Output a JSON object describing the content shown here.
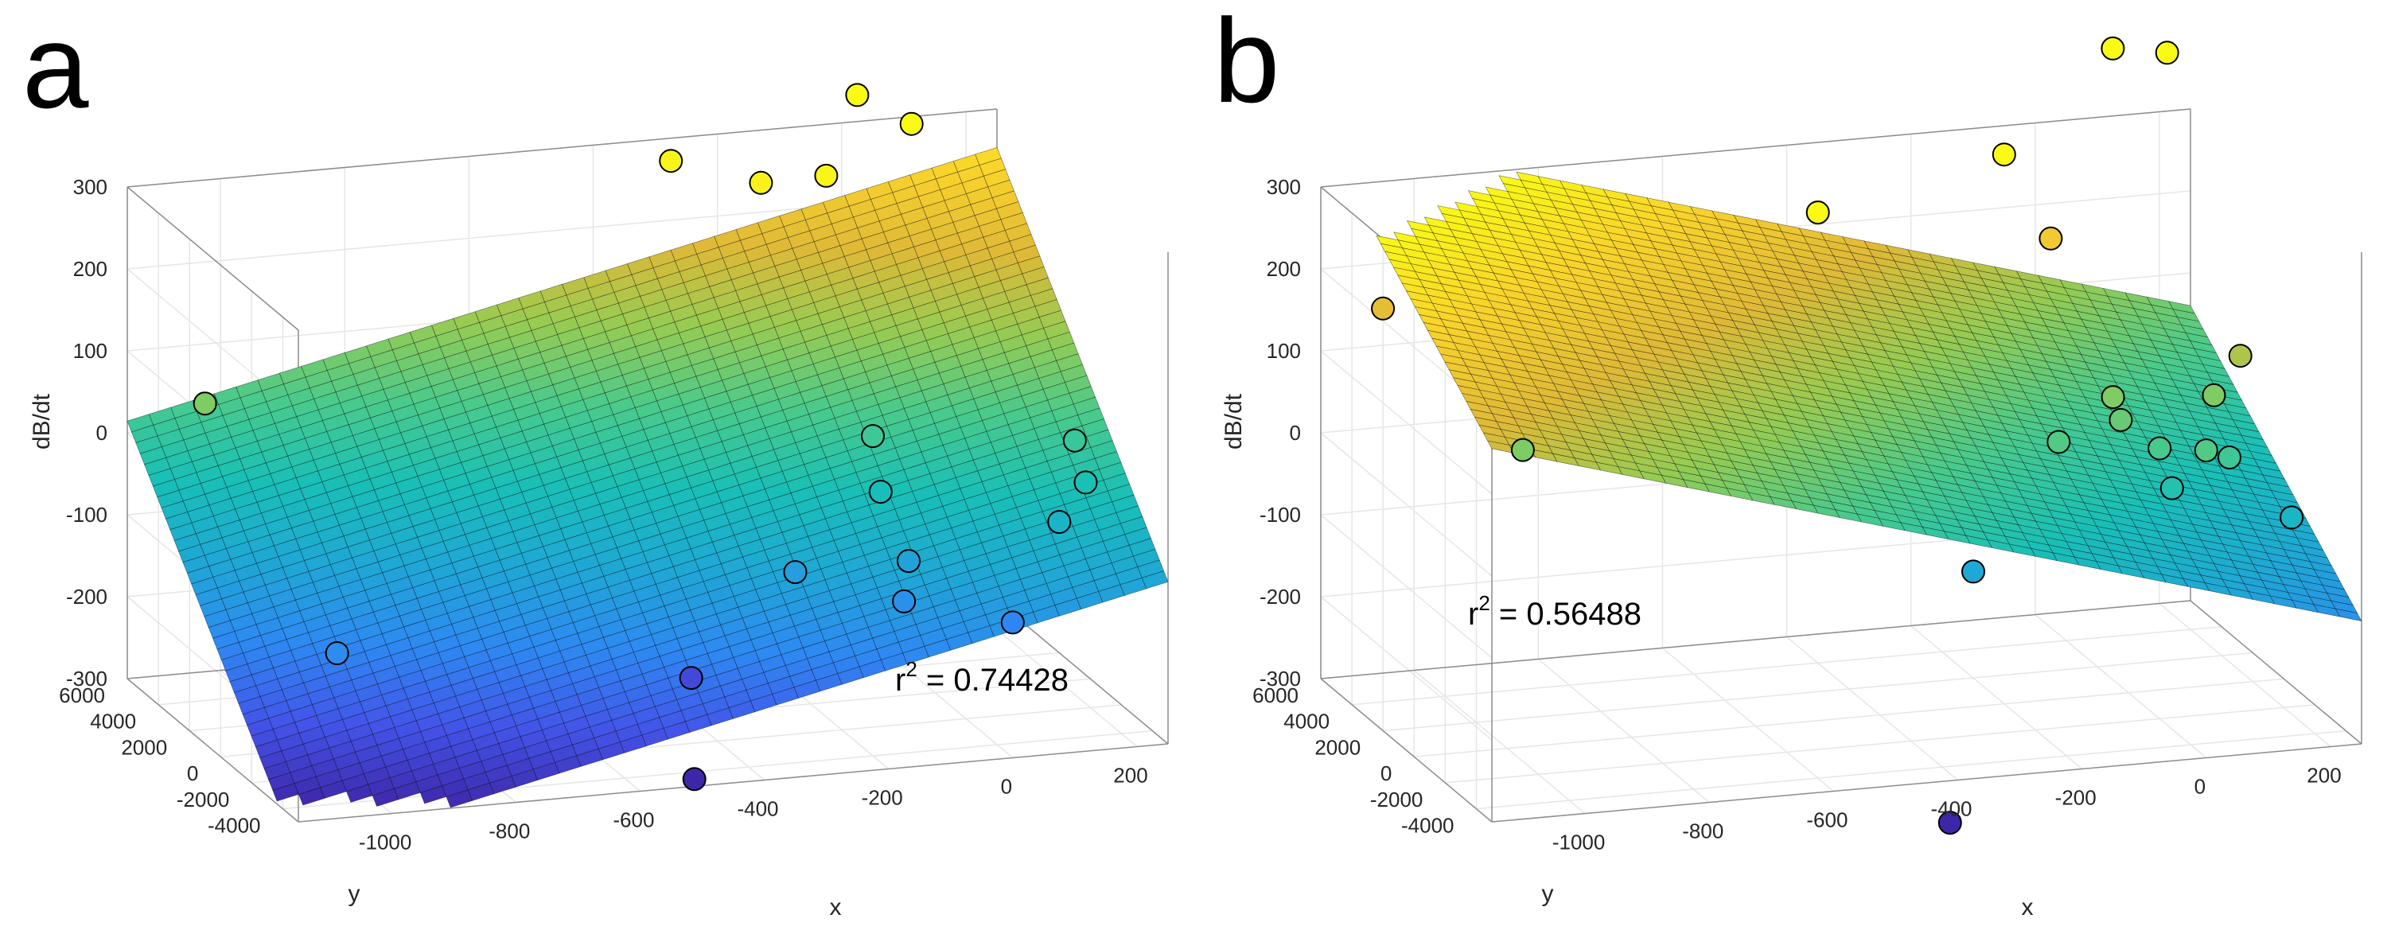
{
  "figure": {
    "colormap": [
      "#3e26a8",
      "#4354e8",
      "#2e89f2",
      "#1fa7d5",
      "#19bfb7",
      "#49ca8c",
      "#96cb53",
      "#dfb937",
      "#f9d32c",
      "#f9fb15"
    ],
    "edge_color": "#000000",
    "grid_color": "#e6e6e6",
    "box_color": "#8c8c8c"
  },
  "chart_data": [
    {
      "panel": "a",
      "type": "surface+scatter3d",
      "xlabel": "x",
      "ylabel": "y",
      "zlabel": "dB/dt",
      "xlim": [
        -1150,
        250
      ],
      "ylim": [
        -5000,
        6000
      ],
      "zlim": [
        -300,
        300
      ],
      "xticks": [
        -1000,
        -800,
        -600,
        -400,
        -200,
        0,
        200
      ],
      "yticks": [
        -4000,
        -2000,
        0,
        2000,
        4000,
        6000
      ],
      "zticks": [
        -300,
        -200,
        -100,
        0,
        100,
        200,
        300
      ],
      "fit": {
        "z0": 16.6,
        "a": 0.1705,
        "b": 0.0323
      },
      "r2_prefix": "r",
      "r2_sup": "2",
      "r2_text": " = 0.74428",
      "points": [
        {
          "x": -1100,
          "y": 3000,
          "z": 80
        },
        {
          "x": -1000,
          "y": -1500,
          "z": -160
        },
        {
          "x": -400,
          "y": -300,
          "z": -250
        },
        {
          "x": -300,
          "y": 5000,
          "z": 290
        },
        {
          "x": -200,
          "y": 3200,
          "z": 285
        },
        {
          "x": -100,
          "y": 3000,
          "z": 290
        },
        {
          "x": 100,
          "y": 5500,
          "z": 300
        },
        {
          "x": 0,
          "y": 5000,
          "z": 350
        },
        {
          "x": -100,
          "y": 0,
          "z": 20
        },
        {
          "x": -100,
          "y": -500,
          "z": -40
        },
        {
          "x": -250,
          "y": -1000,
          "z": -120
        },
        {
          "x": -80,
          "y": -1500,
          "z": -110
        },
        {
          "x": -100,
          "y": -2000,
          "z": -150
        },
        {
          "x": 50,
          "y": -3000,
          "z": -170
        },
        {
          "x": 200,
          "y": -1000,
          "z": 10
        },
        {
          "x": 150,
          "y": -2000,
          "z": -70
        },
        {
          "x": 200,
          "y": -1700,
          "z": -30
        },
        {
          "x": -500,
          "y": -4500,
          "z": -300
        }
      ]
    },
    {
      "panel": "b",
      "type": "surface+scatter3d",
      "xlabel": "x",
      "ylabel": "y",
      "zlabel": "dB/dt",
      "xlim": [
        -1150,
        250
      ],
      "ylim": [
        -5000,
        6000
      ],
      "zlim": [
        -300,
        300
      ],
      "xticks": [
        -1000,
        -800,
        -600,
        -400,
        -200,
        0,
        200
      ],
      "yticks": [
        -4000,
        -2000,
        0,
        2000,
        4000,
        6000
      ],
      "zticks": [
        -300,
        -200,
        -100,
        0,
        100,
        200,
        300
      ],
      "fit": {
        "z0": 0,
        "a": -0.2182,
        "b": 0.0191
      },
      "r2_prefix": "r",
      "r2_sup": "2",
      "r2_text": " = 0.56488",
      "points": [
        {
          "x": -1100,
          "y": 4000,
          "z": 180
        },
        {
          "x": -1000,
          "y": -1000,
          "z": 80
        },
        {
          "x": -500,
          "y": 0,
          "z": 320
        },
        {
          "x": -300,
          "y": -2000,
          "z": -100
        },
        {
          "x": -50,
          "y": 3000,
          "z": 210
        },
        {
          "x": -100,
          "y": 4000,
          "z": 300
        },
        {
          "x": 100,
          "y": 5000,
          "z": 400
        },
        {
          "x": 200,
          "y": 5500,
          "z": 380
        },
        {
          "x": -150,
          "y": -1500,
          "z": 40
        },
        {
          "x": -50,
          "y": -1000,
          "z": 80
        },
        {
          "x": 0,
          "y": -2000,
          "z": 30
        },
        {
          "x": -50,
          "y": -1500,
          "z": 60
        },
        {
          "x": 50,
          "y": -3000,
          "z": 40
        },
        {
          "x": 20,
          "y": -2000,
          "z": -20
        },
        {
          "x": 100,
          "y": -2500,
          "z": 20
        },
        {
          "x": 100,
          "y": -1500,
          "z": 80
        },
        {
          "x": 150,
          "y": -1200,
          "z": 120
        },
        {
          "x": 200,
          "y": -2500,
          "z": -60
        },
        {
          "x": -400,
          "y": -4500,
          "z": -360
        }
      ]
    }
  ]
}
